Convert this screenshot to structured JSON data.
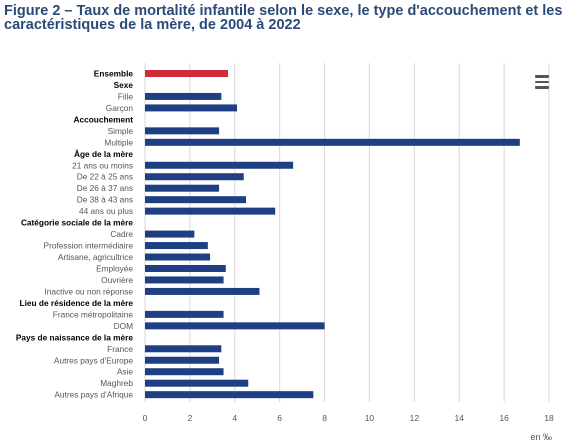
{
  "title": "Figure 2 – Taux de mortalité infantile selon le sexe, le type d'accouchement et les caractéristiques de la mère, de 2004 à 2022",
  "menu_icon": "hamburger-menu-icon",
  "colors": {
    "highlight": "#d12a3a",
    "bar": "#1f3f85",
    "grid": "#d9d9d9",
    "title": "#2b4a78"
  },
  "chart_data": {
    "type": "bar",
    "orientation": "horizontal",
    "unit": "en ‰",
    "xlim": [
      0,
      18
    ],
    "xticks": [
      0,
      2,
      4,
      6,
      8,
      10,
      12,
      14,
      16,
      18
    ],
    "grid": true,
    "rows": [
      {
        "label": "Ensemble",
        "value": 3.7,
        "heading": true,
        "highlight": true
      },
      {
        "label": "Sexe",
        "heading": true
      },
      {
        "label": "Fille",
        "value": 3.4
      },
      {
        "label": "Garçon",
        "value": 4.1
      },
      {
        "label": "Accouchement",
        "heading": true
      },
      {
        "label": "Simple",
        "value": 3.3
      },
      {
        "label": "Multiple",
        "value": 16.7
      },
      {
        "label": "Âge de la mère",
        "heading": true
      },
      {
        "label": "21 ans ou moins",
        "value": 6.6
      },
      {
        "label": "De 22 à 25 ans",
        "value": 4.4
      },
      {
        "label": "De 26 à 37 ans",
        "value": 3.3
      },
      {
        "label": "De 38 à 43 ans",
        "value": 4.5
      },
      {
        "label": "44 ans ou plus",
        "value": 5.8
      },
      {
        "label": "Catégorie sociale de la mère",
        "heading": true
      },
      {
        "label": "Cadre",
        "value": 2.2
      },
      {
        "label": "Profession intermédiaire",
        "value": 2.8
      },
      {
        "label": "Artisane, agricultrice",
        "value": 2.9
      },
      {
        "label": "Employée",
        "value": 3.6
      },
      {
        "label": "Ouvrière",
        "value": 3.5
      },
      {
        "label": "Inactive ou non réponse",
        "value": 5.1
      },
      {
        "label": "Lieu de résidence de la mère",
        "heading": true
      },
      {
        "label": "France métropolitaine",
        "value": 3.5
      },
      {
        "label": "DOM",
        "value": 8.0
      },
      {
        "label": "Pays de naissance de la mère",
        "heading": true
      },
      {
        "label": "France",
        "value": 3.4
      },
      {
        "label": "Autres pays d'Europe",
        "value": 3.3
      },
      {
        "label": "Asie",
        "value": 3.5
      },
      {
        "label": "Maghreb",
        "value": 4.6
      },
      {
        "label": "Autres pays d'Afrique",
        "value": 7.5
      }
    ]
  }
}
